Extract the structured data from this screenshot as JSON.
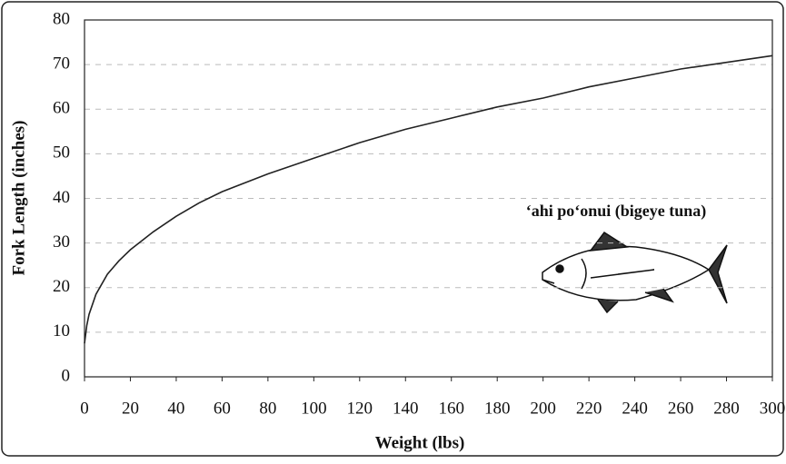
{
  "chart_data": {
    "type": "line",
    "x_label": "Weight (lbs)",
    "y_label": "Fork Length (inches)",
    "annotation": "‘ahi po‘onui (bigeye tuna)",
    "x": [
      0,
      1,
      2,
      5,
      10,
      15,
      20,
      30,
      40,
      50,
      60,
      80,
      100,
      120,
      140,
      160,
      180,
      200,
      220,
      240,
      260,
      280,
      300
    ],
    "values": [
      7.5,
      11.5,
      14,
      18.5,
      23,
      26,
      28.5,
      32.5,
      36,
      39,
      41.5,
      45.5,
      49,
      52.5,
      55.5,
      58,
      60.5,
      62.5,
      65,
      67,
      69,
      70.5,
      72
    ],
    "color": "#222222",
    "xlim": [
      0,
      300
    ],
    "xticks": [
      0,
      20,
      40,
      60,
      80,
      100,
      120,
      140,
      160,
      180,
      200,
      220,
      240,
      260,
      280,
      300
    ],
    "ylim": [
      0,
      80
    ],
    "yticks": [
      0,
      10,
      20,
      30,
      40,
      50,
      60,
      70,
      80
    ],
    "grid": true
  }
}
